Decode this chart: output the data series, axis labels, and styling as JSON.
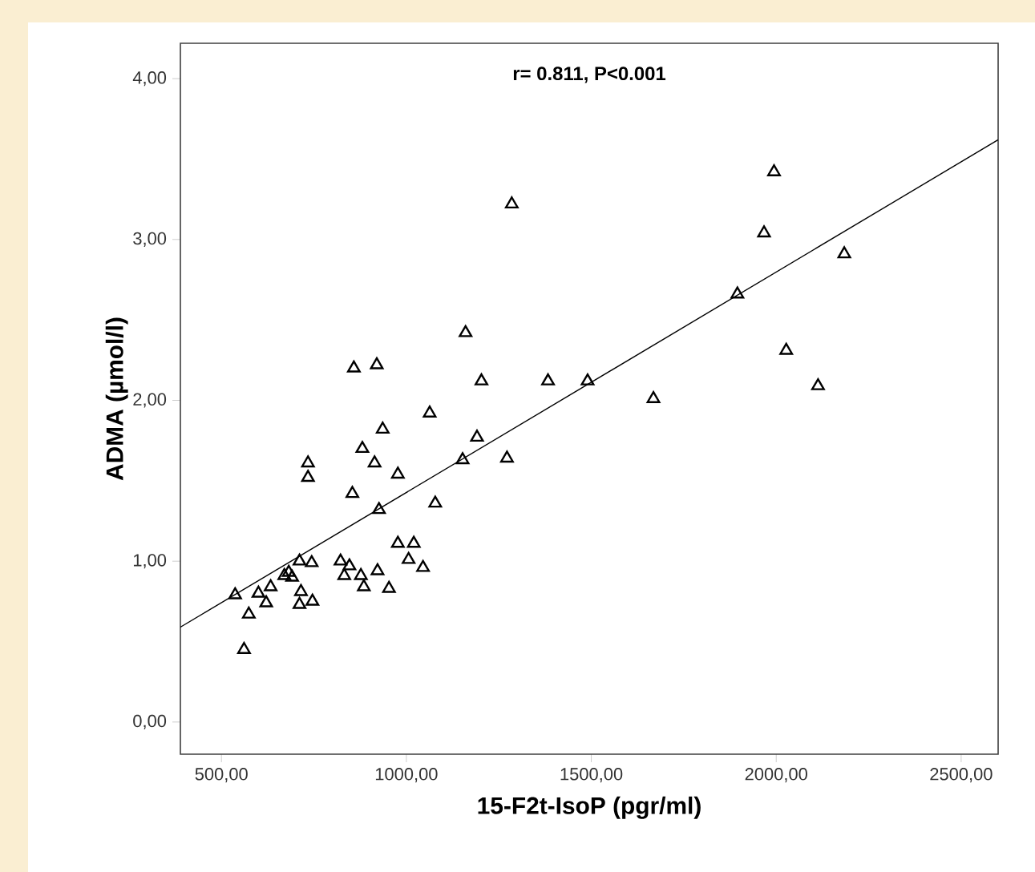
{
  "chart_data": {
    "type": "scatter",
    "xlabel": "15-F2t-IsoP (pgr/ml)",
    "ylabel": "ADMA (µmol/l)",
    "annotations": [
      "r= 0.811, P<0.001"
    ],
    "xlim": [
      389,
      2600
    ],
    "ylim": [
      -0.2,
      4.22
    ],
    "xticks": [
      {
        "value": 500,
        "label": "500,00"
      },
      {
        "value": 1000,
        "label": "1000,00"
      },
      {
        "value": 1500,
        "label": "1500,00"
      },
      {
        "value": 2000,
        "label": "2000,00"
      },
      {
        "value": 2500,
        "label": "2500,00"
      }
    ],
    "yticks": [
      {
        "value": 0,
        "label": "0,00"
      },
      {
        "value": 1,
        "label": "1,00"
      },
      {
        "value": 2,
        "label": "2,00"
      },
      {
        "value": 3,
        "label": "3,00"
      },
      {
        "value": 4,
        "label": "4,00"
      }
    ],
    "grid": false,
    "series": [
      {
        "color": "#000000",
        "marker": "triangle",
        "x": [
          537,
          561,
          574,
          600,
          621,
          633,
          670,
          682,
          691,
          711,
          715,
          711,
          744,
          746,
          734,
          734,
          822,
          832,
          846,
          877,
          885,
          922,
          953,
          854,
          858,
          920,
          881,
          914,
          936,
          926,
          977,
          977,
          1020,
          1006,
          1045,
          1063,
          1078,
          1152,
          1160,
          1191,
          1203,
          1272,
          1285,
          1383,
          1490,
          1668,
          1895,
          1967,
          1994,
          2027,
          2113,
          2184
        ],
        "values": [
          0.79,
          0.45,
          0.67,
          0.8,
          0.74,
          0.84,
          0.91,
          0.93,
          0.9,
          1.0,
          0.81,
          0.73,
          0.99,
          0.75,
          1.61,
          1.52,
          1.0,
          0.91,
          0.97,
          0.91,
          0.84,
          0.94,
          0.83,
          1.42,
          2.2,
          2.22,
          1.7,
          1.61,
          1.82,
          1.32,
          1.54,
          1.11,
          1.11,
          1.01,
          0.96,
          1.92,
          1.36,
          1.63,
          2.42,
          1.77,
          2.12,
          1.64,
          3.22,
          2.12,
          2.12,
          2.01,
          2.66,
          3.04,
          3.42,
          2.31,
          2.09,
          2.91
        ]
      },
      {
        "type": "line",
        "color": "#000000",
        "marker": "none",
        "x": [
          389,
          2600
        ],
        "values": [
          0.59,
          3.62
        ]
      }
    ]
  }
}
